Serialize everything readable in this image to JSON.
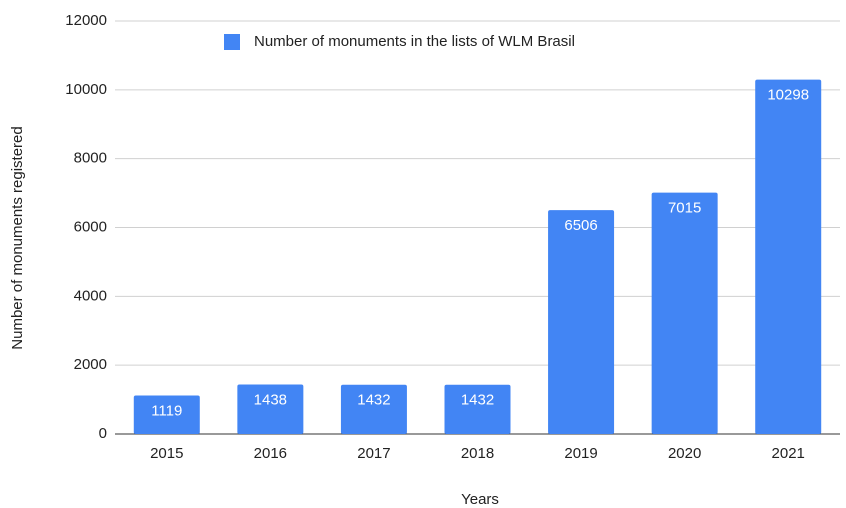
{
  "chart_data": {
    "type": "bar",
    "x_label": "Years",
    "y_label": "Number of monuments registered",
    "categories": [
      "2015",
      "2016",
      "2017",
      "2018",
      "2019",
      "2020",
      "2021"
    ],
    "series": [
      {
        "name": "Number of monuments in the lists of WLM Brasil",
        "color": "#4285f4",
        "values": [
          1119,
          1438,
          1432,
          1432,
          6506,
          7015,
          10298
        ]
      }
    ],
    "ylim": [
      0,
      12000
    ],
    "yticks": [
      0,
      2000,
      4000,
      6000,
      8000,
      10000,
      12000
    ],
    "grid": true,
    "legend": "top",
    "data_labels": true
  }
}
